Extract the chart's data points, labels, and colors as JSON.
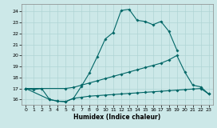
{
  "xlabel": "Humidex (Indice chaleur)",
  "xlim": [
    -0.5,
    23.5
  ],
  "ylim": [
    15.5,
    24.7
  ],
  "yticks": [
    16,
    17,
    18,
    19,
    20,
    21,
    22,
    23,
    24
  ],
  "xticks": [
    0,
    1,
    2,
    3,
    4,
    5,
    6,
    7,
    8,
    9,
    10,
    11,
    12,
    13,
    14,
    15,
    16,
    17,
    18,
    19,
    20,
    21,
    22,
    23
  ],
  "bg_color": "#cce8e8",
  "grid_color": "#b0d4d4",
  "line_color": "#006666",
  "series": [
    {
      "x": [
        0,
        1,
        2,
        3,
        4,
        5,
        6,
        7,
        8,
        9,
        10,
        11,
        12,
        13,
        14,
        15,
        16,
        17,
        18,
        19
      ],
      "y": [
        17.0,
        16.9,
        17.0,
        16.0,
        15.85,
        15.8,
        16.1,
        17.2,
        18.4,
        19.9,
        21.5,
        22.1,
        24.1,
        24.2,
        23.2,
        23.1,
        22.8,
        23.1,
        22.2,
        20.5
      ]
    },
    {
      "x": [
        0,
        5,
        6,
        7,
        8,
        9,
        10,
        11,
        12,
        13,
        14,
        15,
        16,
        17,
        18,
        19,
        20,
        21,
        22,
        23
      ],
      "y": [
        17.0,
        17.0,
        17.1,
        17.3,
        17.5,
        17.7,
        17.9,
        18.1,
        18.3,
        18.5,
        18.7,
        18.9,
        19.1,
        19.3,
        19.6,
        20.0,
        18.5,
        17.3,
        17.15,
        16.5
      ]
    },
    {
      "x": [
        0,
        3,
        4,
        5,
        6,
        7,
        8,
        9,
        10,
        11,
        12,
        13,
        14,
        15,
        16,
        17,
        18,
        19,
        20,
        21,
        22,
        23
      ],
      "y": [
        17.0,
        16.0,
        15.85,
        15.8,
        16.1,
        16.2,
        16.3,
        16.35,
        16.4,
        16.45,
        16.5,
        16.55,
        16.6,
        16.65,
        16.7,
        16.75,
        16.8,
        16.85,
        16.9,
        16.95,
        17.0,
        16.5
      ]
    }
  ]
}
